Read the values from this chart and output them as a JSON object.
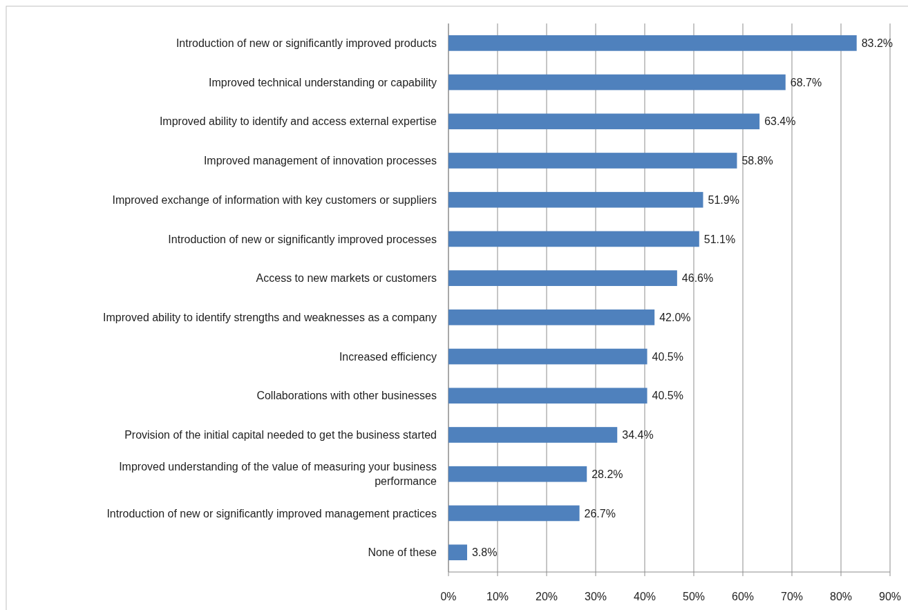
{
  "chart_data": {
    "type": "bar",
    "orientation": "horizontal",
    "categories": [
      "Introduction of new or significantly improved products",
      "Improved technical understanding or capability",
      "Improved ability to identify and access external expertise",
      "Improved management of innovation processes",
      "Improved exchange of information with key customers or suppliers",
      "Introduction of new or significantly improved processes",
      "Access to new markets or customers",
      "Improved ability to identify strengths and weaknesses as a company",
      "Increased efficiency",
      "Collaborations with other businesses",
      "Provision of the initial capital needed to get the business started",
      "Improved understanding of the value of measuring your business performance",
      "Introduction of new or significantly improved management practices",
      "None of these"
    ],
    "values": [
      83.2,
      68.7,
      63.4,
      58.8,
      51.9,
      51.1,
      46.6,
      42.0,
      40.5,
      40.5,
      34.4,
      28.2,
      26.7,
      3.8
    ],
    "value_labels": [
      "83.2%",
      "68.7%",
      "63.4%",
      "58.8%",
      "51.9%",
      "51.1%",
      "46.6%",
      "42.0%",
      "40.5%",
      "40.5%",
      "34.4%",
      "28.2%",
      "26.7%",
      "3.8%"
    ],
    "color": "#4f81bd",
    "xlim": [
      0,
      90
    ],
    "xticks": [
      {
        "value": 0,
        "label": "0%"
      },
      {
        "value": 10,
        "label": "10%"
      },
      {
        "value": 20,
        "label": "20%"
      },
      {
        "value": 30,
        "label": "30%"
      },
      {
        "value": 40,
        "label": "40%"
      },
      {
        "value": 50,
        "label": "50%"
      },
      {
        "value": 60,
        "label": "60%"
      },
      {
        "value": 70,
        "label": "70%"
      },
      {
        "value": 80,
        "label": "80%"
      },
      {
        "value": 90,
        "label": "90%"
      }
    ],
    "grid": "x"
  }
}
